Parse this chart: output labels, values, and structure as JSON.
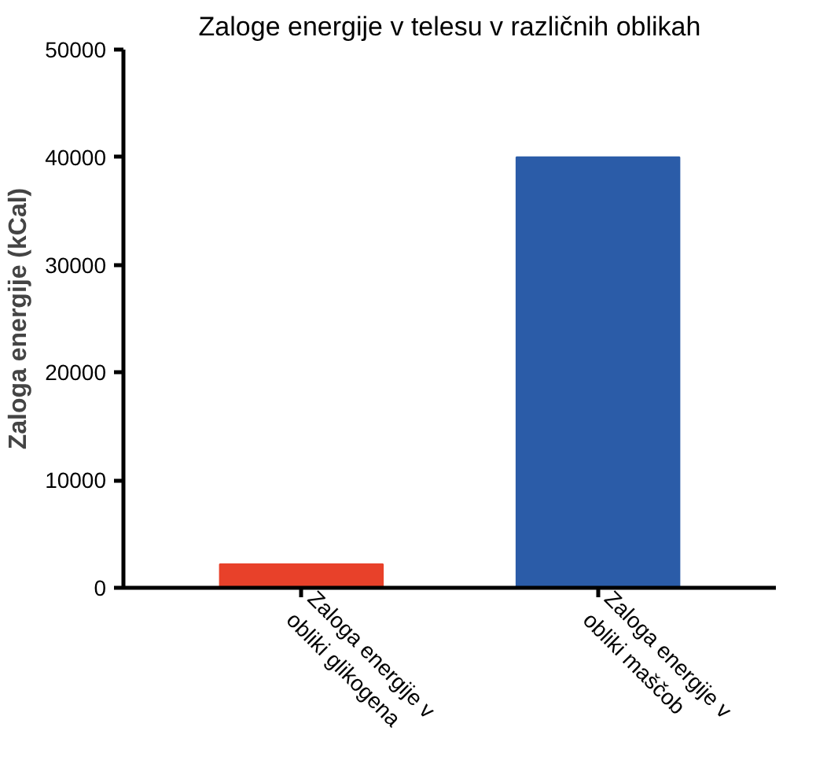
{
  "chart_data": {
    "type": "bar",
    "title": "Zaloge energije v telesu v različnih oblikah",
    "ylabel": "Zaloga energije (kCal)",
    "categories": [
      "Zaloga energije v\nobliki glikogena",
      "Zaloga energije v\nobliki maščob"
    ],
    "values": [
      2200,
      40000
    ],
    "colors": [
      "#e8412a",
      "#2b5ca8"
    ],
    "ylim": [
      0,
      50000
    ],
    "yticks": [
      0,
      10000,
      20000,
      30000,
      40000,
      50000
    ],
    "grid": false
  }
}
